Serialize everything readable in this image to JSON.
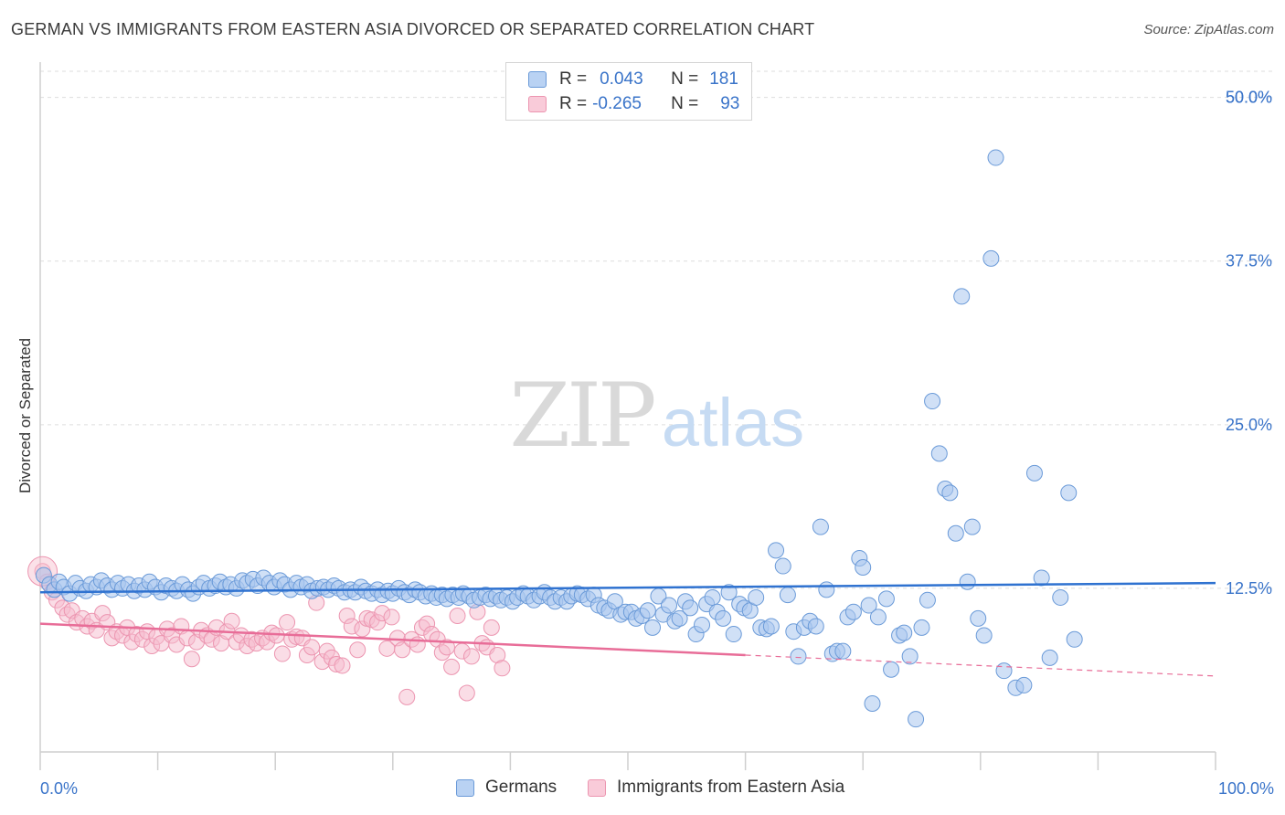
{
  "title": "GERMAN VS IMMIGRANTS FROM EASTERN ASIA DIVORCED OR SEPARATED CORRELATION CHART",
  "source": "Source: ZipAtlas.com",
  "watermark": {
    "zip": "ZIP",
    "atlas": "atlas"
  },
  "legend": {
    "rows": [
      {
        "r_label": "R =",
        "r_value": "0.043",
        "n_label": "N =",
        "n_value": "181"
      },
      {
        "r_label": "R =",
        "r_value": "-0.265",
        "n_label": "N =",
        "n_value": "93"
      }
    ]
  },
  "colors": {
    "blue_fill": "#a9c7ef",
    "blue_stroke": "#6a9ad8",
    "blue_line": "#2f72d0",
    "pink_fill": "#f6bccd",
    "pink_stroke": "#ec95b0",
    "pink_line": "#e86d98",
    "axis_text": "#3a74c9",
    "grid": "#dddddd"
  },
  "chart_data": {
    "type": "scatter",
    "title": "GERMAN VS IMMIGRANTS FROM EASTERN ASIA DIVORCED OR SEPARATED CORRELATION CHART",
    "xlabel": "",
    "ylabel": "Divorced or Separated",
    "xlim": [
      0,
      100
    ],
    "ylim": [
      0,
      52
    ],
    "x_tick_labels": [
      "0.0%",
      "100.0%"
    ],
    "y_ticks": [
      12.5,
      25.0,
      37.5,
      50.0
    ],
    "y_tick_labels": [
      "12.5%",
      "25.0%",
      "37.5%",
      "50.0%"
    ],
    "grid": true,
    "legend_position": "top-center",
    "series": [
      {
        "name": "Germans",
        "r": 0.043,
        "n": 181,
        "trend": {
          "x": [
            0,
            100
          ],
          "y": [
            12.2,
            12.9
          ]
        },
        "points": [
          [
            0.3,
            13.5
          ],
          [
            0.8,
            12.8
          ],
          [
            1.2,
            12.4
          ],
          [
            1.6,
            13.0
          ],
          [
            2.0,
            12.6
          ],
          [
            2.5,
            12.1
          ],
          [
            3.0,
            12.9
          ],
          [
            3.4,
            12.5
          ],
          [
            3.9,
            12.3
          ],
          [
            4.3,
            12.8
          ],
          [
            4.8,
            12.6
          ],
          [
            5.2,
            13.1
          ],
          [
            5.7,
            12.7
          ],
          [
            6.1,
            12.4
          ],
          [
            6.6,
            12.9
          ],
          [
            7.0,
            12.5
          ],
          [
            7.5,
            12.8
          ],
          [
            8.0,
            12.3
          ],
          [
            8.4,
            12.7
          ],
          [
            8.9,
            12.4
          ],
          [
            9.3,
            13.0
          ],
          [
            9.8,
            12.6
          ],
          [
            10.3,
            12.2
          ],
          [
            10.7,
            12.7
          ],
          [
            11.2,
            12.5
          ],
          [
            11.6,
            12.3
          ],
          [
            12.1,
            12.8
          ],
          [
            12.6,
            12.4
          ],
          [
            13.0,
            12.1
          ],
          [
            13.5,
            12.6
          ],
          [
            13.9,
            12.9
          ],
          [
            14.4,
            12.5
          ],
          [
            14.9,
            12.7
          ],
          [
            15.3,
            13.0
          ],
          [
            15.8,
            12.6
          ],
          [
            16.2,
            12.8
          ],
          [
            16.7,
            12.5
          ],
          [
            17.2,
            13.1
          ],
          [
            17.6,
            12.9
          ],
          [
            18.1,
            13.2
          ],
          [
            18.5,
            12.7
          ],
          [
            19.0,
            13.3
          ],
          [
            19.5,
            12.9
          ],
          [
            19.9,
            12.6
          ],
          [
            20.4,
            13.1
          ],
          [
            20.8,
            12.8
          ],
          [
            21.3,
            12.4
          ],
          [
            21.8,
            12.9
          ],
          [
            22.2,
            12.6
          ],
          [
            22.7,
            12.8
          ],
          [
            23.1,
            12.3
          ],
          [
            23.6,
            12.5
          ],
          [
            24.1,
            12.6
          ],
          [
            24.5,
            12.4
          ],
          [
            25.0,
            12.7
          ],
          [
            25.4,
            12.5
          ],
          [
            25.9,
            12.2
          ],
          [
            26.4,
            12.4
          ],
          [
            26.8,
            12.2
          ],
          [
            27.3,
            12.6
          ],
          [
            27.7,
            12.3
          ],
          [
            28.2,
            12.1
          ],
          [
            28.7,
            12.4
          ],
          [
            29.1,
            12.0
          ],
          [
            29.6,
            12.3
          ],
          [
            30.0,
            12.1
          ],
          [
            30.5,
            12.5
          ],
          [
            31.0,
            12.2
          ],
          [
            31.4,
            12.0
          ],
          [
            31.9,
            12.4
          ],
          [
            32.3,
            12.2
          ],
          [
            32.8,
            11.9
          ],
          [
            33.3,
            12.1
          ],
          [
            33.7,
            11.8
          ],
          [
            34.2,
            12.0
          ],
          [
            34.6,
            11.7
          ],
          [
            35.1,
            12.0
          ],
          [
            35.6,
            11.8
          ],
          [
            36.0,
            12.1
          ],
          [
            36.5,
            11.9
          ],
          [
            36.9,
            11.6
          ],
          [
            37.4,
            11.8
          ],
          [
            37.9,
            12.0
          ],
          [
            38.3,
            11.7
          ],
          [
            38.8,
            11.9
          ],
          [
            39.2,
            11.6
          ],
          [
            39.7,
            11.8
          ],
          [
            40.2,
            11.5
          ],
          [
            40.6,
            11.8
          ],
          [
            41.1,
            12.1
          ],
          [
            41.5,
            11.9
          ],
          [
            42.0,
            11.6
          ],
          [
            42.5,
            11.9
          ],
          [
            42.9,
            12.2
          ],
          [
            43.4,
            11.8
          ],
          [
            43.8,
            11.5
          ],
          [
            44.3,
            11.8
          ],
          [
            44.8,
            11.5
          ],
          [
            45.2,
            11.9
          ],
          [
            45.7,
            12.1
          ],
          [
            46.1,
            12.0
          ],
          [
            46.6,
            11.7
          ],
          [
            47.1,
            12.0
          ],
          [
            47.5,
            11.2
          ],
          [
            48.0,
            11.0
          ],
          [
            48.4,
            10.8
          ],
          [
            48.9,
            11.5
          ],
          [
            49.4,
            10.5
          ],
          [
            49.8,
            10.7
          ],
          [
            50.3,
            10.7
          ],
          [
            50.7,
            10.2
          ],
          [
            51.2,
            10.4
          ],
          [
            51.7,
            10.8
          ],
          [
            52.1,
            9.5
          ],
          [
            52.6,
            11.9
          ],
          [
            53.0,
            10.5
          ],
          [
            53.5,
            11.2
          ],
          [
            54.0,
            10.0
          ],
          [
            54.4,
            10.2
          ],
          [
            54.9,
            11.5
          ],
          [
            55.3,
            11.0
          ],
          [
            55.8,
            9.0
          ],
          [
            56.3,
            9.7
          ],
          [
            56.7,
            11.3
          ],
          [
            57.2,
            11.8
          ],
          [
            57.6,
            10.7
          ],
          [
            58.1,
            10.2
          ],
          [
            58.6,
            12.2
          ],
          [
            59.0,
            9.0
          ],
          [
            59.5,
            11.3
          ],
          [
            59.9,
            11.0
          ],
          [
            60.4,
            10.8
          ],
          [
            60.9,
            11.8
          ],
          [
            61.3,
            9.5
          ],
          [
            61.8,
            9.4
          ],
          [
            62.2,
            9.6
          ],
          [
            62.6,
            15.4
          ],
          [
            63.2,
            14.2
          ],
          [
            63.6,
            12.0
          ],
          [
            64.1,
            9.2
          ],
          [
            64.5,
            7.3
          ],
          [
            65.0,
            9.5
          ],
          [
            65.5,
            10.0
          ],
          [
            66.0,
            9.6
          ],
          [
            66.4,
            17.2
          ],
          [
            66.9,
            12.4
          ],
          [
            67.4,
            7.5
          ],
          [
            67.8,
            7.7
          ],
          [
            68.3,
            7.7
          ],
          [
            68.7,
            10.3
          ],
          [
            69.2,
            10.7
          ],
          [
            69.7,
            14.8
          ],
          [
            70.0,
            14.1
          ],
          [
            70.5,
            11.2
          ],
          [
            70.8,
            3.7
          ],
          [
            71.3,
            10.3
          ],
          [
            72.0,
            11.7
          ],
          [
            72.4,
            6.3
          ],
          [
            73.1,
            8.9
          ],
          [
            73.5,
            9.1
          ],
          [
            74.0,
            7.3
          ],
          [
            74.5,
            2.5
          ],
          [
            75.0,
            9.5
          ],
          [
            75.5,
            11.6
          ],
          [
            75.9,
            26.8
          ],
          [
            76.5,
            22.8
          ],
          [
            77.0,
            20.1
          ],
          [
            77.4,
            19.8
          ],
          [
            77.9,
            16.7
          ],
          [
            78.4,
            34.8
          ],
          [
            78.9,
            13.0
          ],
          [
            79.3,
            17.2
          ],
          [
            79.8,
            10.2
          ],
          [
            80.3,
            8.9
          ],
          [
            80.9,
            37.7
          ],
          [
            81.3,
            45.4
          ],
          [
            82.0,
            6.2
          ],
          [
            83.0,
            4.9
          ],
          [
            83.7,
            5.1
          ],
          [
            84.6,
            21.3
          ],
          [
            85.2,
            13.3
          ],
          [
            85.9,
            7.2
          ],
          [
            86.8,
            11.8
          ],
          [
            87.5,
            19.8
          ],
          [
            88.0,
            8.6
          ]
        ]
      },
      {
        "name": "Immigrants from Eastern Asia",
        "r": -0.265,
        "n": 93,
        "trend": {
          "x": [
            0,
            60
          ],
          "y": [
            9.8,
            7.4
          ],
          "dashed_extension": {
            "x": [
              60,
              100
            ],
            "y": [
              7.4,
              5.8
            ]
          }
        },
        "points": [
          [
            0.2,
            13.8
          ],
          [
            0.6,
            13.0
          ],
          [
            1.0,
            12.2
          ],
          [
            1.4,
            11.6
          ],
          [
            1.9,
            11.0
          ],
          [
            2.3,
            10.5
          ],
          [
            2.7,
            10.8
          ],
          [
            3.1,
            9.9
          ],
          [
            3.6,
            10.2
          ],
          [
            4.0,
            9.6
          ],
          [
            4.4,
            10.0
          ],
          [
            4.8,
            9.3
          ],
          [
            5.3,
            10.6
          ],
          [
            5.7,
            9.9
          ],
          [
            6.1,
            8.7
          ],
          [
            6.5,
            9.2
          ],
          [
            7.0,
            8.9
          ],
          [
            7.4,
            9.5
          ],
          [
            7.8,
            8.4
          ],
          [
            8.2,
            9.0
          ],
          [
            8.7,
            8.6
          ],
          [
            9.1,
            9.2
          ],
          [
            9.5,
            8.1
          ],
          [
            9.9,
            8.8
          ],
          [
            10.3,
            8.3
          ],
          [
            10.8,
            9.4
          ],
          [
            11.2,
            8.9
          ],
          [
            11.6,
            8.2
          ],
          [
            12.0,
            9.6
          ],
          [
            12.5,
            8.7
          ],
          [
            12.9,
            7.1
          ],
          [
            13.3,
            8.4
          ],
          [
            13.7,
            9.3
          ],
          [
            14.2,
            8.9
          ],
          [
            14.6,
            8.6
          ],
          [
            15.0,
            9.5
          ],
          [
            15.4,
            8.3
          ],
          [
            15.9,
            9.2
          ],
          [
            16.3,
            10.0
          ],
          [
            16.7,
            8.4
          ],
          [
            17.1,
            8.9
          ],
          [
            17.6,
            8.1
          ],
          [
            18.0,
            8.6
          ],
          [
            18.4,
            8.3
          ],
          [
            18.9,
            8.7
          ],
          [
            19.3,
            8.4
          ],
          [
            19.7,
            9.1
          ],
          [
            20.1,
            8.9
          ],
          [
            20.6,
            7.5
          ],
          [
            21.0,
            9.9
          ],
          [
            21.4,
            8.6
          ],
          [
            21.8,
            8.8
          ],
          [
            22.3,
            8.7
          ],
          [
            22.7,
            7.4
          ],
          [
            23.1,
            8.0
          ],
          [
            23.5,
            11.4
          ],
          [
            24.0,
            6.9
          ],
          [
            24.4,
            7.7
          ],
          [
            24.8,
            7.2
          ],
          [
            25.2,
            6.7
          ],
          [
            25.7,
            6.6
          ],
          [
            26.1,
            10.4
          ],
          [
            26.5,
            9.6
          ],
          [
            27.0,
            7.8
          ],
          [
            27.4,
            9.4
          ],
          [
            27.8,
            10.2
          ],
          [
            28.2,
            10.1
          ],
          [
            28.7,
            9.9
          ],
          [
            29.1,
            10.6
          ],
          [
            29.5,
            7.9
          ],
          [
            29.9,
            10.3
          ],
          [
            30.4,
            8.7
          ],
          [
            30.8,
            7.8
          ],
          [
            31.2,
            4.2
          ],
          [
            31.6,
            8.6
          ],
          [
            32.1,
            8.2
          ],
          [
            32.5,
            9.5
          ],
          [
            32.9,
            9.8
          ],
          [
            33.3,
            9.0
          ],
          [
            33.8,
            8.6
          ],
          [
            34.2,
            7.6
          ],
          [
            34.6,
            8.0
          ],
          [
            35.0,
            6.5
          ],
          [
            35.5,
            10.4
          ],
          [
            35.9,
            7.7
          ],
          [
            36.3,
            4.5
          ],
          [
            36.7,
            7.3
          ],
          [
            37.2,
            10.7
          ],
          [
            37.6,
            8.3
          ],
          [
            38.0,
            8.0
          ],
          [
            38.4,
            9.5
          ],
          [
            38.9,
            7.4
          ],
          [
            39.3,
            6.4
          ]
        ]
      }
    ]
  }
}
